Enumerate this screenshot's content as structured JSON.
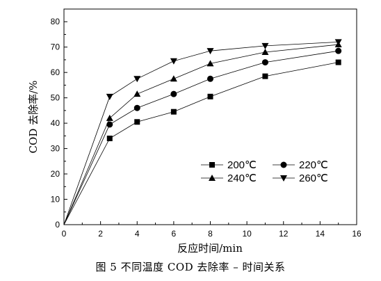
{
  "caption": "图 5   不同温度 COD 去除率 – 时间关系",
  "chart_data": {
    "type": "line",
    "xlabel": "反应时间/min",
    "ylabel": "COD 去除率/%",
    "xlim": [
      0,
      16
    ],
    "ylim": [
      0,
      85
    ],
    "xticks": [
      0,
      2,
      4,
      6,
      8,
      10,
      12,
      14,
      16
    ],
    "yticks": [
      0,
      10,
      20,
      30,
      40,
      50,
      60,
      70,
      80
    ],
    "grid": false,
    "legend_position": "bottom-right",
    "series": [
      {
        "name": "200℃",
        "marker": "square",
        "x": [
          0,
          2.5,
          4,
          6,
          8,
          11,
          15
        ],
        "y": [
          0,
          34,
          40.5,
          44.5,
          50.5,
          58.5,
          64
        ]
      },
      {
        "name": "220℃",
        "marker": "circle",
        "x": [
          0,
          2.5,
          4,
          6,
          8,
          11,
          15
        ],
        "y": [
          0,
          39.5,
          46,
          51.5,
          57.5,
          64,
          68.5
        ]
      },
      {
        "name": "240℃",
        "marker": "triangle-up",
        "x": [
          0,
          2.5,
          4,
          6,
          8,
          11,
          15
        ],
        "y": [
          0,
          42,
          51.5,
          57.5,
          63.5,
          68,
          71
        ]
      },
      {
        "name": "260℃",
        "marker": "triangle-down",
        "x": [
          0,
          2.5,
          4,
          6,
          8,
          11,
          15
        ],
        "y": [
          0,
          50.5,
          57.5,
          64.5,
          68.5,
          70.5,
          72
        ]
      }
    ]
  }
}
